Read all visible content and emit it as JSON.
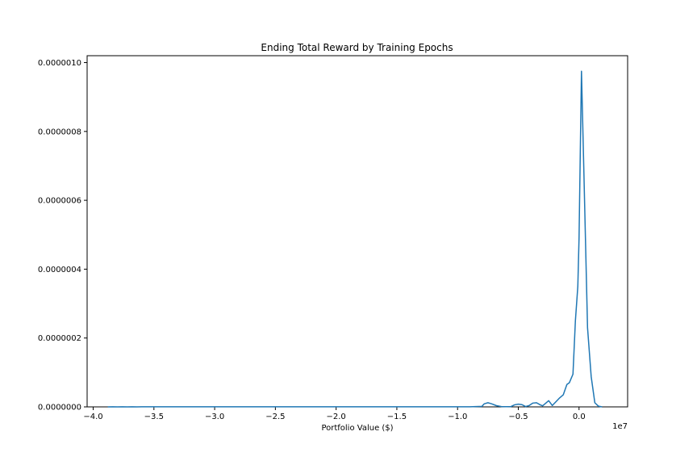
{
  "chart_data": {
    "type": "line",
    "title": "Ending Total Reward by Training Epochs",
    "xlabel": "Portfolio Value ($)",
    "ylabel": "",
    "x_offset_text": "1e7",
    "x_multiplier": 10000000,
    "xlim": [
      -4.05,
      0.4
    ],
    "ylim": [
      0,
      1.02e-06
    ],
    "xticks": [
      -4.0,
      -3.5,
      -3.0,
      -2.5,
      -2.0,
      -1.5,
      -1.0,
      -0.5,
      0.0
    ],
    "xtick_labels": [
      "−4.0",
      "−3.5",
      "−3.0",
      "−2.5",
      "−2.0",
      "−1.5",
      "−1.0",
      "−0.5",
      "0.0"
    ],
    "yticks": [
      0,
      2e-07,
      4e-07,
      6e-07,
      8e-07,
      1e-06
    ],
    "ytick_labels": [
      "0.0000000",
      "0.0000002",
      "0.0000004",
      "0.0000006",
      "0.0000008",
      "0.0000010"
    ],
    "grid": false,
    "series": [
      {
        "color": "#1f77b4",
        "x": [
          -3.88,
          -3.84,
          -3.8,
          -3.76,
          -3.72,
          -3.68,
          -3.64,
          -3.6,
          -3.5,
          -3.4,
          -3.3,
          -3.2,
          -3.1,
          -3.0,
          -2.8,
          -2.6,
          -2.4,
          -2.2,
          -2.0,
          -1.8,
          -1.6,
          -1.4,
          -1.2,
          -1.0,
          -0.9,
          -0.8,
          -0.78,
          -0.75,
          -0.72,
          -0.68,
          -0.64,
          -0.6,
          -0.56,
          -0.53,
          -0.5,
          -0.47,
          -0.44,
          -0.41,
          -0.38,
          -0.35,
          -0.32,
          -0.3,
          -0.28,
          -0.25,
          -0.22,
          -0.19,
          -0.16,
          -0.13,
          -0.1,
          -0.08,
          -0.05,
          -0.03,
          -0.01,
          0.0,
          0.02,
          0.04,
          0.07,
          0.1,
          0.13,
          0.16,
          0.19
        ],
        "y": [
          0.0,
          3e-10,
          0.0,
          4e-10,
          0.0,
          3e-10,
          0.0,
          2e-10,
          2e-10,
          2e-10,
          2e-10,
          2e-10,
          2e-10,
          2e-10,
          2e-10,
          2e-10,
          2e-10,
          2e-10,
          2e-10,
          2e-10,
          2e-10,
          2e-10,
          2e-10,
          2e-10,
          4e-10,
          1.5e-09,
          9e-09,
          1.2e-08,
          9e-09,
          3.5e-09,
          1e-09,
          5e-10,
          1e-09,
          6e-09,
          8e-09,
          6.5e-09,
          1e-09,
          4e-09,
          1.1e-08,
          1.2e-08,
          6e-09,
          3e-09,
          9e-09,
          1.8e-08,
          4e-09,
          1.5e-08,
          2.6e-08,
          3.5e-08,
          6.5e-08,
          7e-08,
          9.5e-08,
          2.5e-07,
          3.5e-07,
          4.9e-07,
          9.75e-07,
          6.8e-07,
          2.3e-07,
          8.8e-08,
          1.2e-08,
          2e-09,
          0.0
        ]
      }
    ]
  }
}
